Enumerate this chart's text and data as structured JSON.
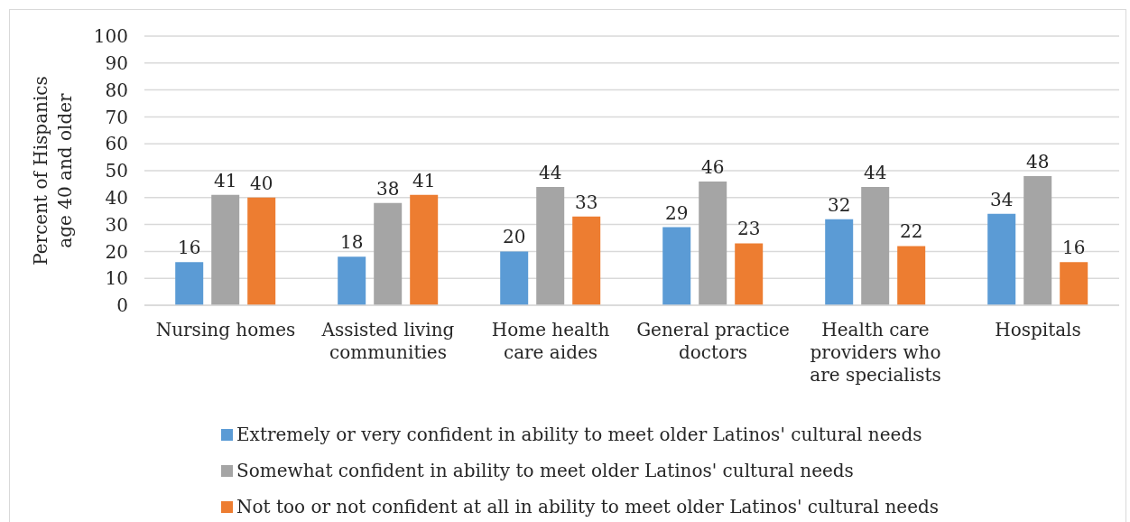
{
  "chart_data": {
    "type": "bar",
    "ylabel": "Percent of Hispanics age 40 and older",
    "categories": [
      "Nursing homes",
      "Assisted living communities",
      "Home health care aides",
      "General practice doctors",
      "Health care providers who are specialists",
      "Hospitals"
    ],
    "series": [
      {
        "name": "Extremely or very confident in ability to meet older Latinos' cultural needs",
        "color": "#5b9bd5",
        "values": [
          16,
          18,
          20,
          29,
          32,
          34
        ]
      },
      {
        "name": "Somewhat confident in ability to meet older Latinos' cultural needs",
        "color": "#a5a5a5",
        "values": [
          41,
          38,
          44,
          46,
          44,
          48
        ]
      },
      {
        "name": "Not too or not confident at all in ability to meet older Latinos' cultural needs",
        "color": "#ed7d31",
        "values": [
          40,
          41,
          33,
          23,
          22,
          16
        ]
      }
    ],
    "ylim": [
      0,
      100
    ],
    "yticks": [
      0,
      10,
      20,
      30,
      40,
      50,
      60,
      70,
      80,
      90,
      100
    ],
    "grid": "y",
    "legend": "bottom",
    "data_labels": true
  }
}
